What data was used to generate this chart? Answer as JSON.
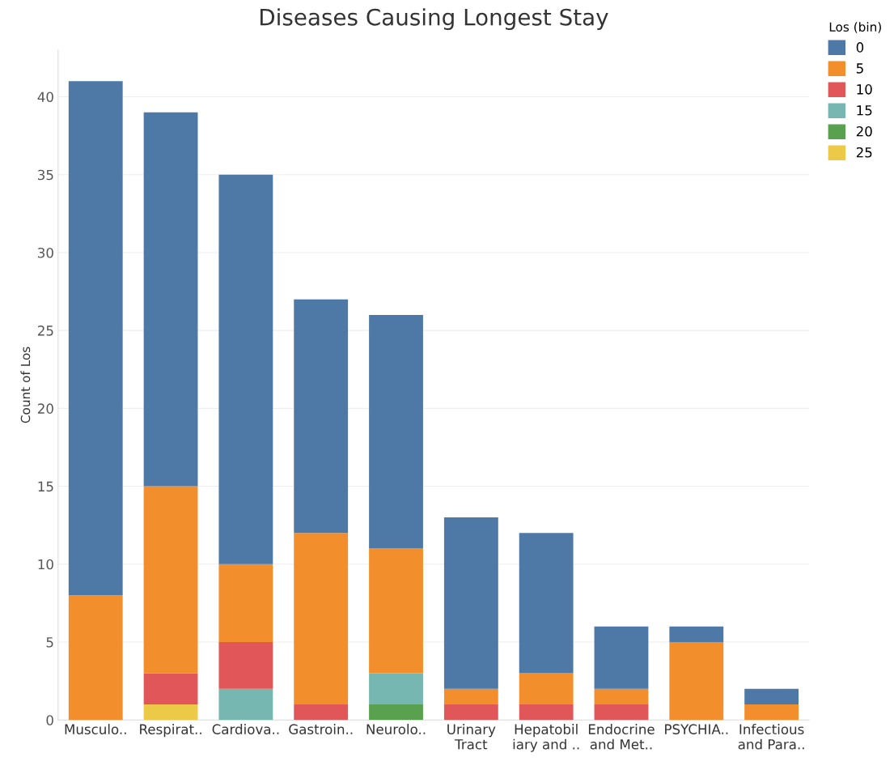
{
  "chart_data": {
    "type": "bar",
    "title": "Diseases Causing Longest Stay",
    "ylabel": "Count of Los",
    "legend_title": "Los (bin)",
    "categories": [
      "Musculo..",
      "Respirat..",
      "Cardiova..",
      "Gastroin..",
      "Neurolo..",
      "Urinary\nTract",
      "Hepatobil\niary and ..",
      "Endocrine\nand Met..",
      "PSYCHIA..",
      "Infectious\nand Para.."
    ],
    "stacked": true,
    "series": [
      {
        "name": "25",
        "color": "#edc948",
        "values": [
          0,
          1,
          0,
          0,
          0,
          0,
          0,
          0,
          0,
          0
        ]
      },
      {
        "name": "20",
        "color": "#59a14f",
        "values": [
          0,
          0,
          0,
          0,
          1,
          0,
          0,
          0,
          0,
          0
        ]
      },
      {
        "name": "15",
        "color": "#76b7b2",
        "values": [
          0,
          0,
          2,
          0,
          2,
          0,
          0,
          0,
          0,
          0
        ]
      },
      {
        "name": "10",
        "color": "#e15759",
        "values": [
          0,
          2,
          3,
          1,
          0,
          1,
          1,
          1,
          0,
          0
        ]
      },
      {
        "name": "5",
        "color": "#f28e2b",
        "values": [
          8,
          12,
          5,
          11,
          8,
          1,
          2,
          1,
          5,
          1
        ]
      },
      {
        "name": "0",
        "color": "#4e79a7",
        "values": [
          33,
          24,
          25,
          15,
          15,
          11,
          9,
          4,
          1,
          1
        ]
      }
    ],
    "ylim": [
      0,
      43
    ],
    "yticks": [
      0,
      5,
      10,
      15,
      20,
      25,
      30,
      35,
      40
    ],
    "grid": "y",
    "legend": "top right"
  }
}
